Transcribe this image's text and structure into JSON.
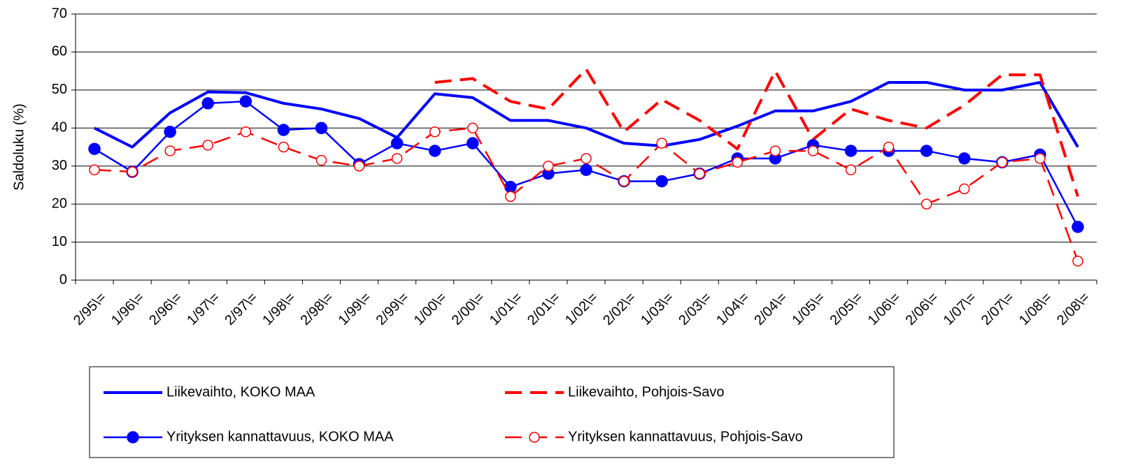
{
  "chart_data": {
    "type": "line",
    "ylabel": "Saldoluku (%)",
    "categories": [
      "2/95\\=",
      "1/96\\=",
      "2/96\\=",
      "1/97\\=",
      "2/97\\=",
      "1/98\\=",
      "2/98\\=",
      "1/99\\=",
      "2/99\\=",
      "1/00\\=",
      "2/00\\=",
      "1/01\\=",
      "2/01\\=",
      "1/02\\=",
      "2/02\\=",
      "1/03\\=",
      "2/03\\=",
      "1/04\\=",
      "2/04\\=",
      "1/05\\=",
      "2/05\\=",
      "1/06\\=",
      "2/06\\=",
      "1/07\\=",
      "2/07\\=",
      "1/08\\=",
      "2/08\\="
    ],
    "series": [
      {
        "name": "Liikevaihto, KOKO MAA",
        "color": "#0000ff",
        "linestyle": "solid",
        "marker": "none",
        "values": [
          40,
          35,
          44,
          49.5,
          49.3,
          46.5,
          45,
          42.5,
          37.5,
          49,
          48,
          42,
          42,
          40,
          36,
          35.3,
          37,
          40.5,
          44.5,
          44.5,
          47,
          52,
          52,
          50,
          50,
          52,
          35
        ]
      },
      {
        "name": "Liikevaihto, Pohjois-Savo",
        "color": "#ff0000",
        "linestyle": "dashed",
        "marker": "none",
        "values": [
          null,
          null,
          null,
          null,
          null,
          null,
          null,
          null,
          null,
          52,
          53,
          47,
          45,
          55.5,
          39,
          47.5,
          42,
          34.5,
          55,
          37,
          45,
          42,
          40,
          46,
          54,
          54,
          22
        ]
      },
      {
        "name": "Yrityksen kannattavuus, KOKO MAA",
        "color": "#0000ff",
        "linestyle": "solid",
        "marker": "circle-filled",
        "values": [
          34.5,
          28.5,
          39,
          46.5,
          47,
          39.5,
          40,
          30.5,
          36,
          34,
          36,
          24.5,
          28,
          29,
          26,
          26,
          28,
          32,
          32,
          35.5,
          34,
          34,
          34,
          32,
          31,
          33,
          14
        ]
      },
      {
        "name": "Yrityksen kannattavuus, Pohjois-Savo",
        "color": "#ff0000",
        "linestyle": "dashed",
        "marker": "circle-open",
        "values": [
          29,
          28.5,
          34,
          35.5,
          39,
          35,
          31.5,
          30,
          32,
          39,
          40,
          22,
          30,
          32,
          26,
          36,
          28,
          31,
          34,
          34,
          29,
          35,
          20,
          24,
          31,
          32,
          5
        ]
      }
    ],
    "ylim": [
      0,
      70
    ],
    "yticks": [
      0,
      10,
      20,
      30,
      40,
      50,
      60,
      70
    ],
    "grid": true
  }
}
